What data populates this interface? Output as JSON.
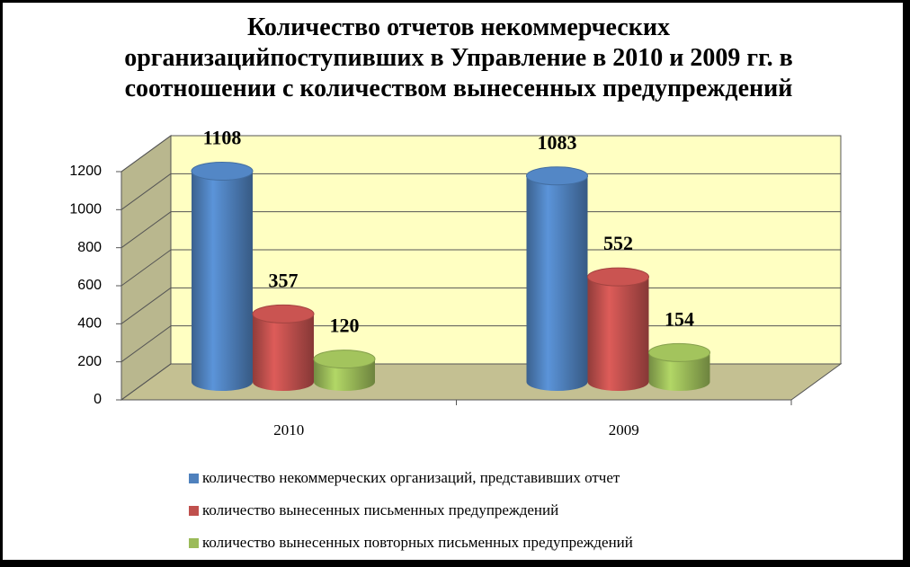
{
  "chart_data": {
    "type": "bar3d",
    "title": "Количество отчетов некоммерческих\nорганизацийпоступивших в Управление в 2010 и 2009 гг. в\nсоотношении с количеством вынесенных предупреждений",
    "categories": [
      "2010",
      "2009"
    ],
    "series": [
      {
        "name": "количество некоммерческих организаций, представивших отчет",
        "color": "#4f81bd",
        "values": [
          1108,
          1083
        ]
      },
      {
        "name": "количество вынесенных письменных предупреждений",
        "color": "#c0504d",
        "values": [
          357,
          552
        ]
      },
      {
        "name": "количество вынесенных повторных письменных предупреждений",
        "color": "#9bbb59",
        "values": [
          120,
          154
        ]
      }
    ],
    "ylim": [
      0,
      1200
    ],
    "yticks": [
      0,
      200,
      400,
      600,
      800,
      1000,
      1200
    ],
    "grid": true,
    "legend": "bottom"
  }
}
